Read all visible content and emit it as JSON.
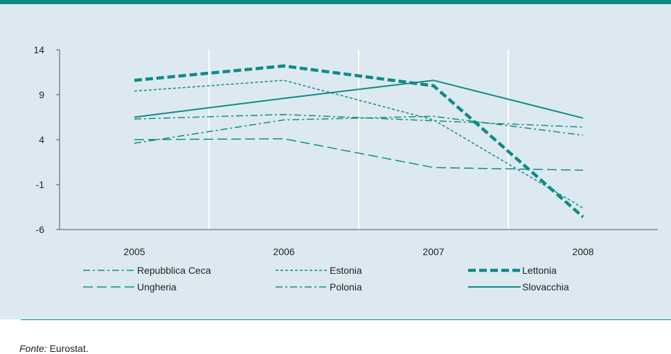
{
  "source": {
    "label": "Fonte:",
    "text": "Eurostat."
  },
  "chart_data": {
    "type": "line",
    "categories": [
      "2005",
      "2006",
      "2007",
      "2008"
    ],
    "ylim": [
      -6,
      14
    ],
    "yticks": [
      "14",
      "9",
      "4",
      "-1",
      "-6"
    ],
    "ytick_values": [
      14,
      9,
      4,
      -1,
      -6
    ],
    "grid": "vertical",
    "series": [
      {
        "name": "Repubblica Ceca",
        "values": [
          6.3,
          6.8,
          6.1,
          5.4
        ],
        "style": "dashdot"
      },
      {
        "name": "Estonia",
        "values": [
          9.4,
          10.6,
          6.2,
          -3.6
        ],
        "style": "dotted"
      },
      {
        "name": "Lettonia",
        "values": [
          10.6,
          12.2,
          10.0,
          -4.6
        ],
        "style": "bold-dash"
      },
      {
        "name": "Ungheria",
        "values": [
          4.0,
          4.1,
          0.9,
          0.6
        ],
        "style": "longdash"
      },
      {
        "name": "Polonia",
        "values": [
          3.6,
          6.2,
          6.6,
          4.5
        ],
        "style": "dashdot"
      },
      {
        "name": "Slovacchia",
        "values": [
          6.5,
          8.6,
          10.6,
          6.4
        ],
        "style": "solid"
      }
    ],
    "colors": {
      "line": "#0e8a86",
      "panel": "#dce9f0",
      "grid": "#ffffff"
    }
  }
}
